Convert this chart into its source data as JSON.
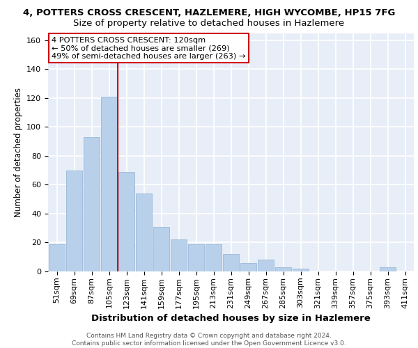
{
  "title1": "4, POTTERS CROSS CRESCENT, HAZLEMERE, HIGH WYCOMBE, HP15 7FG",
  "title2": "Size of property relative to detached houses in Hazlemere",
  "xlabel": "Distribution of detached houses by size in Hazlemere",
  "ylabel": "Number of detached properties",
  "categories": [
    "51sqm",
    "69sqm",
    "87sqm",
    "105sqm",
    "123sqm",
    "141sqm",
    "159sqm",
    "177sqm",
    "195sqm",
    "213sqm",
    "231sqm",
    "249sqm",
    "267sqm",
    "285sqm",
    "303sqm",
    "321sqm",
    "339sqm",
    "357sqm",
    "375sqm",
    "393sqm",
    "411sqm"
  ],
  "values": [
    19,
    70,
    93,
    121,
    69,
    54,
    31,
    22,
    19,
    19,
    12,
    6,
    8,
    3,
    2,
    0,
    0,
    0,
    0,
    3,
    0
  ],
  "bar_color": "#b8d0ea",
  "bar_edge_color": "#9ab8d8",
  "vline_color": "#cc0000",
  "vline_index": 4,
  "annotation_line1": "4 POTTERS CROSS CRESCENT: 120sqm",
  "annotation_line2": "← 50% of detached houses are smaller (269)",
  "annotation_line3": "49% of semi-detached houses are larger (263) →",
  "annotation_box_color": "#cc0000",
  "annotation_bg": "#ffffff",
  "footer1": "Contains HM Land Registry data © Crown copyright and database right 2024.",
  "footer2": "Contains public sector information licensed under the Open Government Licence v3.0.",
  "ylim": [
    0,
    165
  ],
  "yticks": [
    0,
    20,
    40,
    60,
    80,
    100,
    120,
    140,
    160
  ],
  "background_color": "#e8eef8",
  "grid_color": "#ffffff",
  "title1_fontsize": 9.5,
  "title2_fontsize": 9.5,
  "ylabel_fontsize": 8.5,
  "xlabel_fontsize": 9.5,
  "tick_fontsize": 8,
  "footer_fontsize": 6.5
}
